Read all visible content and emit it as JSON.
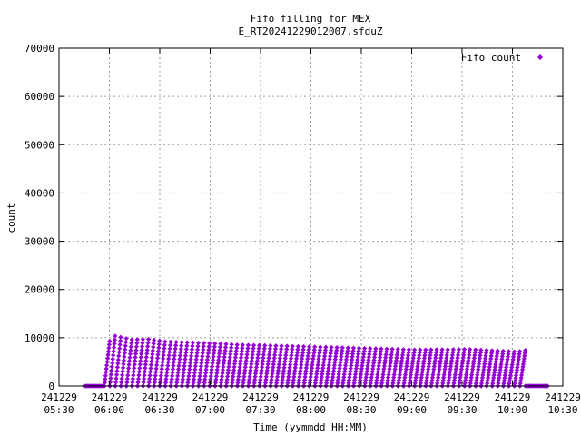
{
  "chart_data": {
    "type": "scatter",
    "title": [
      "Fifo filling for MEX",
      "E_RT20241229012007.sfduZ"
    ],
    "xlabel": "Time (yymmdd HH:MM)",
    "ylabel": "count",
    "x_tick_labels": [
      [
        "241229",
        "05:30"
      ],
      [
        "241229",
        "06:00"
      ],
      [
        "241229",
        "06:30"
      ],
      [
        "241229",
        "07:00"
      ],
      [
        "241229",
        "07:30"
      ],
      [
        "241229",
        "08:00"
      ],
      [
        "241229",
        "08:30"
      ],
      [
        "241229",
        "09:00"
      ],
      [
        "241229",
        "09:30"
      ],
      [
        "241229",
        "10:00"
      ],
      [
        "241229",
        "10:30"
      ]
    ],
    "y_tick_labels": [
      "0",
      "10000",
      "20000",
      "30000",
      "40000",
      "50000",
      "60000",
      "70000"
    ],
    "xlim": [
      "2024-12-29 05:30",
      "2024-12-29 10:30"
    ],
    "ylim": [
      0,
      70000
    ],
    "grid": true,
    "legend_position": "top-right",
    "series": [
      {
        "name": "Fifo count",
        "color": "#9400d3",
        "marker": "diamond",
        "idle_periods": [
          {
            "from": "2024-12-29 05:45",
            "to": "2024-12-29 05:56",
            "value": 0
          },
          {
            "from": "2024-12-29 10:09",
            "to": "2024-12-29 10:21",
            "value": 0
          }
        ],
        "sawtooth_envelope": [
          {
            "time": "2024-12-29 05:57",
            "peak": 9300
          },
          {
            "time": "2024-12-29 06:00",
            "peak": 10400
          },
          {
            "time": "2024-12-29 06:10",
            "peak": 9600
          },
          {
            "time": "2024-12-29 06:20",
            "peak": 9700
          },
          {
            "time": "2024-12-29 06:30",
            "peak": 9200
          },
          {
            "time": "2024-12-29 06:45",
            "peak": 9000
          },
          {
            "time": "2024-12-29 07:00",
            "peak": 8800
          },
          {
            "time": "2024-12-29 07:15",
            "peak": 8500
          },
          {
            "time": "2024-12-29 07:30",
            "peak": 8400
          },
          {
            "time": "2024-12-29 08:00",
            "peak": 8100
          },
          {
            "time": "2024-12-29 08:30",
            "peak": 7800
          },
          {
            "time": "2024-12-29 09:00",
            "peak": 7500
          },
          {
            "time": "2024-12-29 09:30",
            "peak": 7600
          },
          {
            "time": "2024-12-29 10:00",
            "peak": 7100
          },
          {
            "time": "2024-12-29 10:08",
            "peak": 7600
          }
        ],
        "sawtooth_period_minutes": 3.3
      }
    ]
  }
}
